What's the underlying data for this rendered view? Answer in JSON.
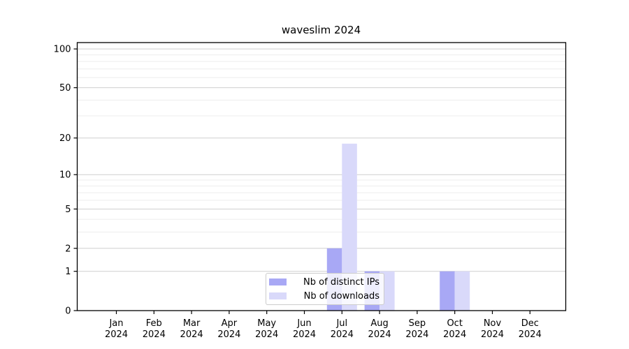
{
  "title": "waveslim 2024",
  "chart_data": {
    "type": "bar",
    "title": "waveslim 2024",
    "categories": [
      "Jan",
      "Feb",
      "Mar",
      "Apr",
      "May",
      "Jun",
      "Jul",
      "Aug",
      "Sep",
      "Oct",
      "Nov",
      "Dec"
    ],
    "year_label": "2024",
    "series": [
      {
        "name": "Nb of distinct IPs",
        "color": "#a8a8f5",
        "values": [
          0,
          0,
          0,
          0,
          0,
          0,
          2,
          1,
          0,
          1,
          0,
          0
        ]
      },
      {
        "name": "Nb of downloads",
        "color": "#d9d9fa",
        "values": [
          0,
          0,
          0,
          0,
          0,
          0,
          18,
          1,
          0,
          1,
          0,
          0
        ]
      }
    ],
    "yticks": [
      0,
      1,
      2,
      5,
      10,
      20,
      50,
      100
    ],
    "minor_gridline_values": [
      3,
      4,
      6,
      7,
      8,
      9,
      30,
      40,
      60,
      70,
      80,
      90
    ],
    "scale": "log1p",
    "ylim": [
      0,
      112
    ],
    "xlabel": "",
    "ylabel": "",
    "grid": true,
    "legend_position": "bottom-center",
    "colors": {
      "major_grid": "#cfcfcf",
      "minor_grid": "#ededed",
      "spine": "#000000",
      "text": "#000000"
    }
  },
  "legend": {
    "items": [
      {
        "label": "Nb of distinct IPs"
      },
      {
        "label": "Nb of downloads"
      }
    ]
  }
}
